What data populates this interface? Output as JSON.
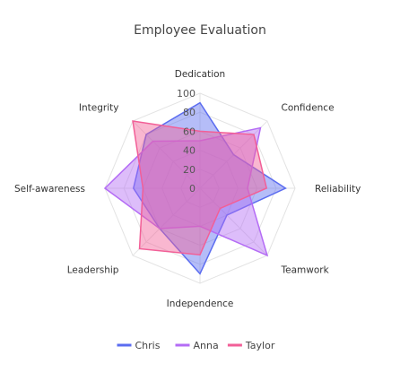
{
  "chart_data": {
    "type": "radar",
    "title": "Employee Evaluation",
    "axes": [
      "Dedication",
      "Confidence",
      "Reliability",
      "Teamwork",
      "Independence",
      "Leadership",
      "Self-awareness",
      "Integrity"
    ],
    "r_range": [
      0,
      100
    ],
    "ticks": [
      0,
      20,
      40,
      60,
      80,
      100
    ],
    "grid": true,
    "legend_position": "bottom",
    "series": [
      {
        "name": "Chris",
        "values": [
          90,
          50,
          90,
          40,
          90,
          60,
          70,
          80
        ],
        "color": "#5b6cf0"
      },
      {
        "name": "Anna",
        "values": [
          50,
          90,
          50,
          100,
          40,
          60,
          100,
          70
        ],
        "color": "#b46cf5"
      },
      {
        "name": "Taylor",
        "values": [
          60,
          80,
          70,
          30,
          70,
          90,
          60,
          100
        ],
        "color": "#f25f97"
      }
    ]
  }
}
